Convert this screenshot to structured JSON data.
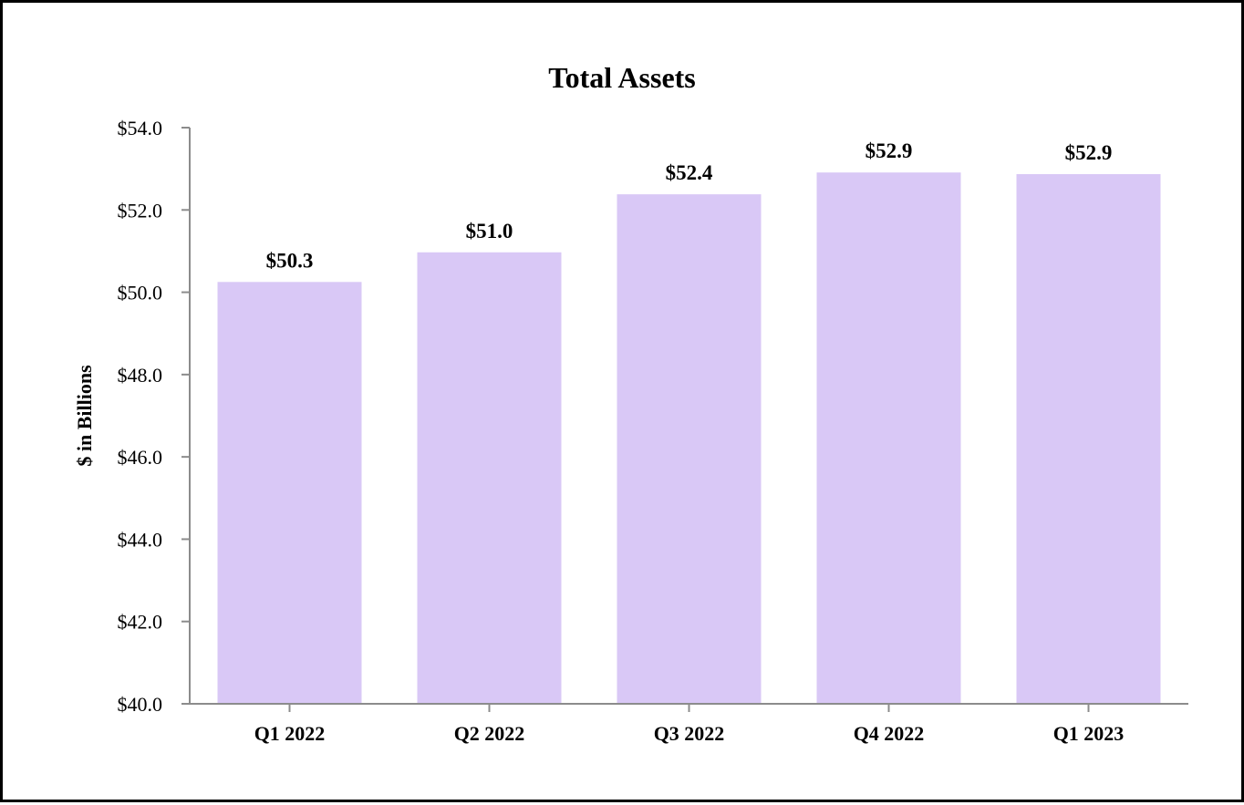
{
  "chart_data": {
    "type": "bar",
    "title": "Total Assets",
    "xlabel": "",
    "ylabel": "$ in Billions",
    "categories": [
      "Q1 2022",
      "Q2 2022",
      "Q3 2022",
      "Q4 2022",
      "Q1 2023"
    ],
    "values": [
      50.25,
      50.97,
      52.38,
      52.91,
      52.87
    ],
    "data_labels": [
      "$50.3",
      "$51.0",
      "$52.4",
      "$52.9",
      "$52.9"
    ],
    "ylim": [
      40.0,
      54.0
    ],
    "yticks": [
      40,
      42,
      44,
      46,
      48,
      50,
      52,
      54
    ],
    "ytick_labels": [
      "$40.0",
      "$42.0",
      "$44.0",
      "$46.0",
      "$48.0",
      "$50.0",
      "$52.0",
      "$54.0"
    ],
    "grid": false,
    "legend": "none",
    "colors": {
      "bar": "#d9c8f6",
      "axis": "#8c8c8c",
      "border": "#000000"
    }
  }
}
